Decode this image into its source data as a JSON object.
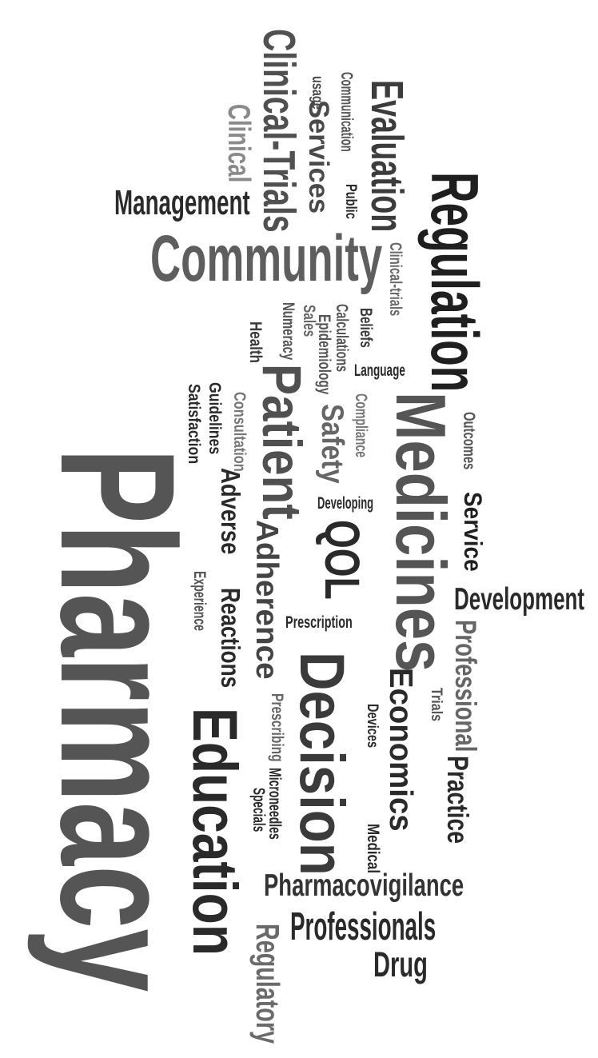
{
  "cloud": {
    "words": [
      {
        "text": "Pharmacy",
        "color": "#555555"
      },
      {
        "text": "Regulation",
        "color": "#1f1f1f"
      },
      {
        "text": "Community",
        "color": "#5e5e5e"
      },
      {
        "text": "Medicines",
        "color": "#555555"
      },
      {
        "text": "Decision",
        "color": "#3a3a3a"
      },
      {
        "text": "Education",
        "color": "#2a2a2a"
      },
      {
        "text": "Patient",
        "color": "#505050"
      },
      {
        "text": "Clinical-Trials",
        "color": "#505050"
      },
      {
        "text": "Evaluation",
        "color": "#3c3c3c"
      },
      {
        "text": "Management",
        "color": "#2a2a2a"
      },
      {
        "text": "Clinical",
        "color": "#8a8a8a"
      },
      {
        "text": "Services",
        "color": "#4a4a4a"
      },
      {
        "text": "usage",
        "color": "#4a4a4a"
      },
      {
        "text": "Communication",
        "color": "#555555"
      },
      {
        "text": "Public",
        "color": "#2a2a2a"
      },
      {
        "text": "Clinical-trials",
        "color": "#6a6a6a"
      },
      {
        "text": "Beliefs",
        "color": "#3a3a3a"
      },
      {
        "text": "Calculations",
        "color": "#555555"
      },
      {
        "text": "Sales",
        "color": "#666666"
      },
      {
        "text": "Numeracy",
        "color": "#555555"
      },
      {
        "text": "Health",
        "color": "#3a3a3a"
      },
      {
        "text": "Epidemiology",
        "color": "#555555"
      },
      {
        "text": "Language",
        "color": "#2a2a2a"
      },
      {
        "text": "Safety",
        "color": "#666666"
      },
      {
        "text": "Compliance",
        "color": "#777777"
      },
      {
        "text": "Consultation",
        "color": "#777777"
      },
      {
        "text": "Guidelines",
        "color": "#2a2a2a"
      },
      {
        "text": "Satisfaction",
        "color": "#2a2a2a"
      },
      {
        "text": "Outcomes",
        "color": "#555555"
      },
      {
        "text": "Adverse",
        "color": "#2a2a2a"
      },
      {
        "text": "Developing",
        "color": "#2a2a2a"
      },
      {
        "text": "Service",
        "color": "#1f1f1f"
      },
      {
        "text": "QOL",
        "color": "#2a2a2a"
      },
      {
        "text": "Adherence",
        "color": "#444444"
      },
      {
        "text": "Development",
        "color": "#2a2a2a"
      },
      {
        "text": "Experience",
        "color": "#555555"
      },
      {
        "text": "Reactions",
        "color": "#2a2a2a"
      },
      {
        "text": "Prescription",
        "color": "#2a2a2a"
      },
      {
        "text": "Professional",
        "color": "#666666"
      },
      {
        "text": "Economics",
        "color": "#2a2a2a"
      },
      {
        "text": "Trials",
        "color": "#555555"
      },
      {
        "text": "Devices",
        "color": "#2a2a2a"
      },
      {
        "text": "Prescribing",
        "color": "#666666"
      },
      {
        "text": "Practice",
        "color": "#2a2a2a"
      },
      {
        "text": "Microneedles",
        "color": "#2a2a2a"
      },
      {
        "text": "Specials",
        "color": "#2a2a2a"
      },
      {
        "text": "Medical",
        "color": "#2a2a2a"
      },
      {
        "text": "Pharmacovigilance",
        "color": "#333333"
      },
      {
        "text": "Professionals",
        "color": "#2a2a2a"
      },
      {
        "text": "Regulatory",
        "color": "#6a6a6a"
      },
      {
        "text": "Drug",
        "color": "#2a2a2a"
      }
    ]
  }
}
